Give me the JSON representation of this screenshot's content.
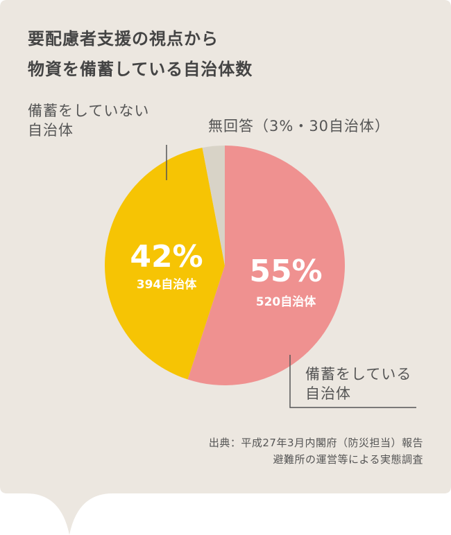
{
  "title_lines": [
    "要配慮者支援の視点から",
    "物資を備蓄している自治体数"
  ],
  "chart_data": {
    "type": "pie",
    "slices": [
      {
        "label_lines": [
          "備蓄をしている",
          "自治体"
        ],
        "percent": 55,
        "percent_text": "55%",
        "count": 520,
        "count_text": "520自治体",
        "color": "#ef9190"
      },
      {
        "label_lines": [
          "備蓄をしていない",
          "自治体"
        ],
        "percent": 42,
        "percent_text": "42%",
        "count": 394,
        "count_text": "394自治体",
        "color": "#f6c404"
      },
      {
        "label_lines": [
          "無回答（3%・30自治体）"
        ],
        "percent": 3,
        "count": 30,
        "color": "#d8d3c7"
      }
    ]
  },
  "source_lines": [
    "出典：平成27年3月内閣府（防災担当）報告",
    "避難所の運営等による実態調査"
  ],
  "colors": {
    "background": "#ece7e0",
    "leader": "#555555"
  }
}
